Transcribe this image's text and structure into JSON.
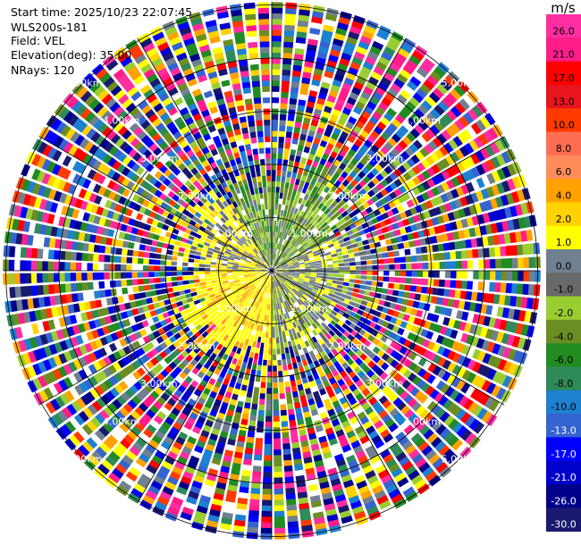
{
  "info": {
    "start_time": "Start time: 2025/10/23 22:07:45",
    "site": "WLS200s-181",
    "field": "Field: VEL",
    "elevation": "Elevation(deg): 35.00",
    "nrays": "NRays: 120"
  },
  "colorbar": {
    "unit": "m/s",
    "ticks": [
      "26.0",
      "21.0",
      "17.0",
      "13.0",
      "10.0",
      "8.0",
      "6.0",
      "4.0",
      "2.0",
      "1.0",
      "0.0",
      "-1.0",
      "-2.0",
      "-4.0",
      "-6.0",
      "-8.0",
      "-10.0",
      "-13.0",
      "-17.0",
      "-21.0",
      "-26.0",
      "-30.0"
    ],
    "colors": [
      "#ff2ea0",
      "#ff1d8a",
      "#ff0000",
      "#e8141e",
      "#ff3a00",
      "#ff6e52",
      "#ff8d5c",
      "#ffa100",
      "#ffd200",
      "#ffff00",
      "#708090",
      "#696969",
      "#9acd32",
      "#6b8e23",
      "#228b22",
      "#2e8b57",
      "#1e80d0",
      "#3464d0",
      "#0000ff",
      "#0000cd",
      "#00008b",
      "#191970"
    ]
  },
  "chart_data": {
    "type": "heatmap",
    "projection": "polar PPI",
    "field": "VEL",
    "units": "m/s",
    "nrays": 120,
    "range_rings_km": [
      1,
      2,
      3,
      4,
      5
    ],
    "ring_labels": [
      "1.00km",
      "2.00km",
      "3.00km",
      "4.00km",
      "5.00km"
    ],
    "max_range_km": 5.05,
    "vmin": -30,
    "vmax": 30,
    "spokes_deg": 30,
    "valid_data_radius_km": 1.6,
    "sector_pattern": [
      {
        "az_from": 0,
        "az_to": 60,
        "class": "olive-green"
      },
      {
        "az_from": 60,
        "az_to": 120,
        "class": "grey"
      },
      {
        "az_from": 120,
        "az_to": 180,
        "class": "grey-green"
      },
      {
        "az_from": 180,
        "az_to": 270,
        "class": "yellow"
      },
      {
        "az_from": 270,
        "az_to": 330,
        "class": "yellow-grey"
      },
      {
        "az_from": 330,
        "az_to": 360,
        "class": "olive-green"
      }
    ]
  }
}
